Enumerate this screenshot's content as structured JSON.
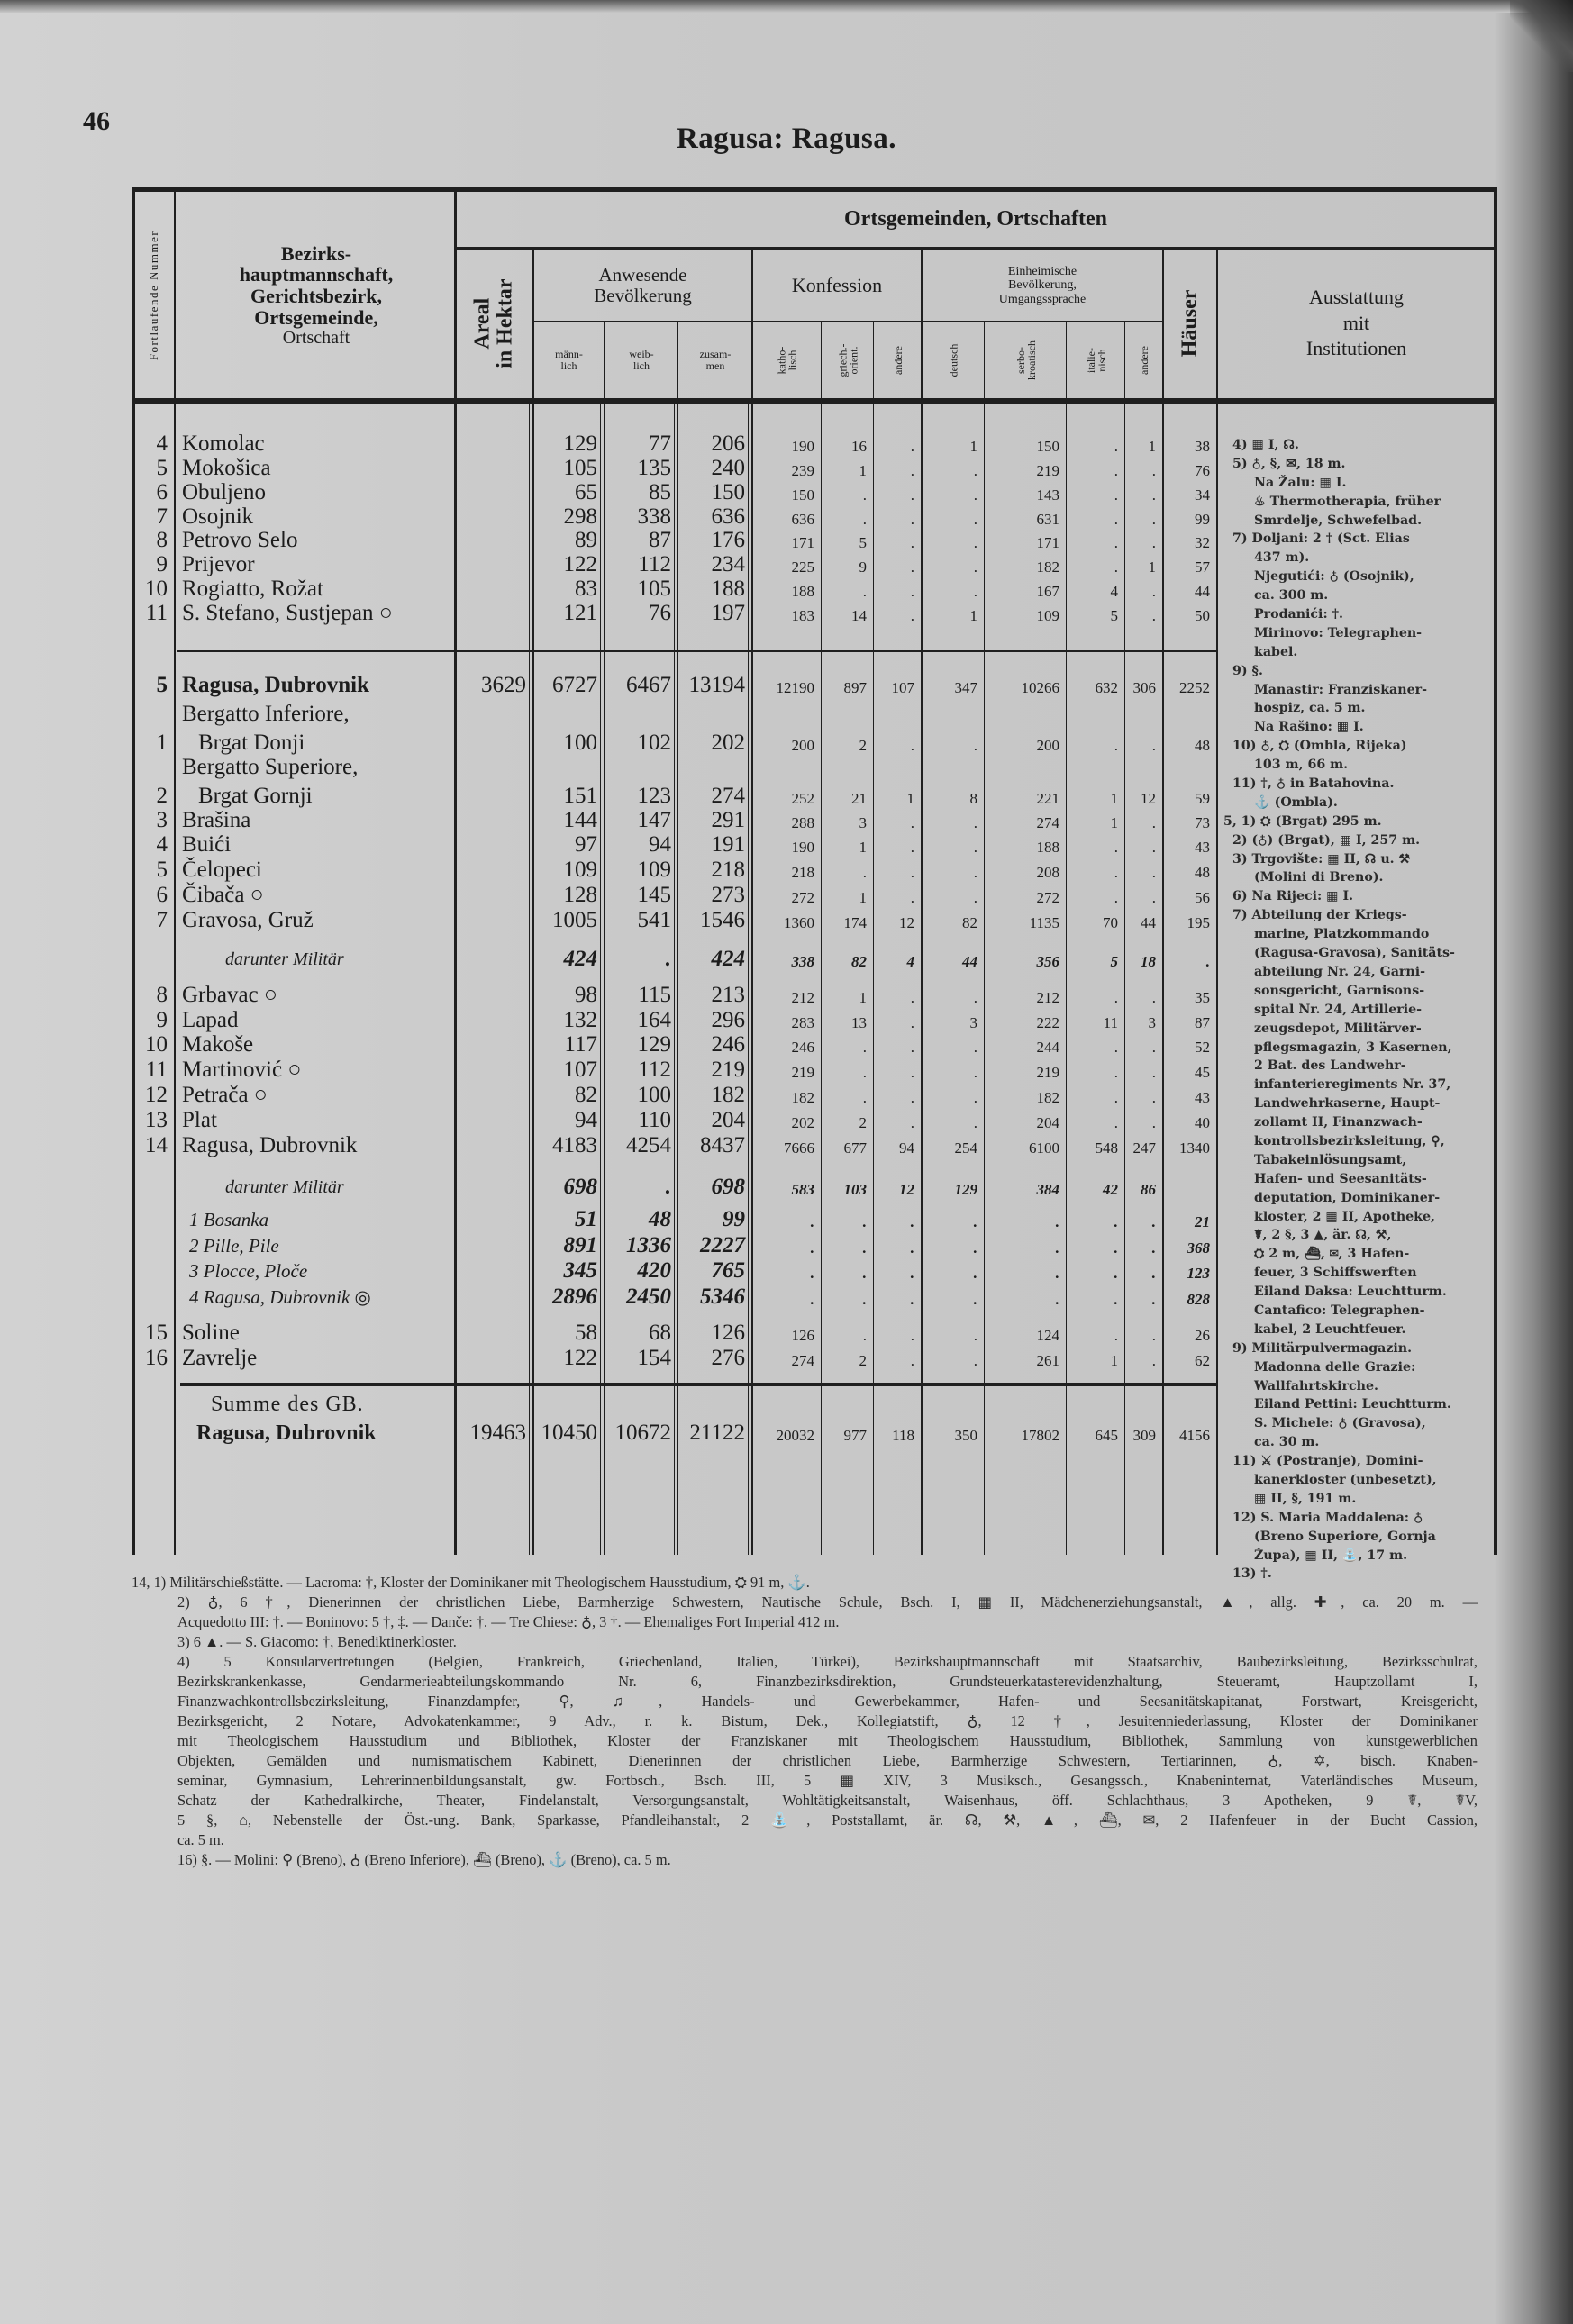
{
  "page": {
    "number": "46",
    "title": "Ragusa: Ragusa."
  },
  "header": {
    "nr": "Fortlaufende Nummer",
    "name": [
      "Bezirks-",
      "hauptmannschaft,",
      "Gerichtsbezirk,",
      "Ortsgemeinde,",
      "Ortschaft"
    ],
    "group_title": "Ortsgemeinden, Ortschaften",
    "areal": [
      "Areal",
      "in Hektar"
    ],
    "bevoelkerung": [
      "Anwesende",
      "Bevölkerung"
    ],
    "bev_cols": [
      [
        "männ-",
        "lich"
      ],
      [
        "weib-",
        "lich"
      ],
      [
        "zusam-",
        "men"
      ]
    ],
    "konfession": "Konfession",
    "konf_cols": [
      [
        "katho-",
        "lisch"
      ],
      [
        "griech.-",
        "orient."
      ],
      [
        "andere"
      ]
    ],
    "sprache": [
      "Einheimische",
      "Bevölkerung,",
      "Umgangssprache"
    ],
    "sprache_cols": [
      [
        "deutsch"
      ],
      [
        "serbo-",
        "kroatisch"
      ],
      [
        "italie-",
        "nisch"
      ],
      [
        "andere"
      ]
    ],
    "haeuser": "Häuser",
    "ausstattung": [
      "Ausstattung",
      "mit",
      "Institutionen"
    ]
  },
  "rows": [
    {
      "nr": "4",
      "name": "Komolac",
      "values": [
        "",
        "129",
        "77",
        "206",
        "190",
        "16",
        ".",
        "1",
        "150",
        ".",
        "1",
        "38"
      ]
    },
    {
      "nr": "5",
      "name": "Mokošica",
      "values": [
        "",
        "105",
        "135",
        "240",
        "239",
        "1",
        ".",
        ".",
        "219",
        ".",
        ".",
        "76"
      ]
    },
    {
      "nr": "6",
      "name": "Obuljeno",
      "values": [
        "",
        "65",
        "85",
        "150",
        "150",
        ".",
        ".",
        ".",
        "143",
        ".",
        ".",
        "34"
      ]
    },
    {
      "nr": "7",
      "name": "Osojnik",
      "values": [
        "",
        "298",
        "338",
        "636",
        "636",
        ".",
        ".",
        ".",
        "631",
        ".",
        ".",
        "99"
      ]
    },
    {
      "nr": "8",
      "name": "Petrovo Selo",
      "values": [
        "",
        "89",
        "87",
        "176",
        "171",
        "5",
        ".",
        ".",
        "171",
        ".",
        ".",
        "32"
      ]
    },
    {
      "nr": "9",
      "name": "Prijevor",
      "values": [
        "",
        "122",
        "112",
        "234",
        "225",
        "9",
        ".",
        ".",
        "182",
        ".",
        "1",
        "57"
      ]
    },
    {
      "nr": "10",
      "name": "Rogiatto, Rožat",
      "values": [
        "",
        "83",
        "105",
        "188",
        "188",
        ".",
        ".",
        ".",
        "167",
        "4",
        ".",
        "44"
      ]
    },
    {
      "nr": "11",
      "name": "S. Stefano, Sustjepan ○",
      "values": [
        "",
        "121",
        "76",
        "197",
        "183",
        "14",
        ".",
        "1",
        "109",
        "5",
        ".",
        "50"
      ]
    },
    {
      "nr": "5",
      "name": "Ragusa, Dubrovnik",
      "kind": "district",
      "values": [
        "3629",
        "6727",
        "6467",
        "13194",
        "12190",
        "897",
        "107",
        "347",
        "10266",
        "632",
        "306",
        "2252"
      ]
    },
    {
      "nr": "1",
      "name_l1": "Bergatto Inferiore,",
      "name": "Brgat Donji",
      "values": [
        "",
        "100",
        "102",
        "202",
        "200",
        "2",
        ".",
        ".",
        "200",
        ".",
        ".",
        "48"
      ]
    },
    {
      "nr": "2",
      "name_l1": "Bergatto Superiore,",
      "name": "Brgat Gornji",
      "values": [
        "",
        "151",
        "123",
        "274",
        "252",
        "21",
        "1",
        "8",
        "221",
        "1",
        "12",
        "59"
      ]
    },
    {
      "nr": "3",
      "name": "Brašina",
      "values": [
        "",
        "144",
        "147",
        "291",
        "288",
        "3",
        ".",
        ".",
        "274",
        "1",
        ".",
        "73"
      ]
    },
    {
      "nr": "4",
      "name": "Buići",
      "values": [
        "",
        "97",
        "94",
        "191",
        "190",
        "1",
        ".",
        ".",
        "188",
        ".",
        ".",
        "43"
      ]
    },
    {
      "nr": "5",
      "name": "Čelopeci",
      "values": [
        "",
        "109",
        "109",
        "218",
        "218",
        ".",
        ".",
        ".",
        "208",
        ".",
        ".",
        "48"
      ]
    },
    {
      "nr": "6",
      "name": "Čibača ○",
      "values": [
        "",
        "128",
        "145",
        "273",
        "272",
        "1",
        ".",
        ".",
        "272",
        ".",
        ".",
        "56"
      ]
    },
    {
      "nr": "7",
      "name": "Gravosa, Gruž",
      "values": [
        "",
        "1005",
        "541",
        "1546",
        "1360",
        "174",
        "12",
        "82",
        "1135",
        "70",
        "44",
        "195"
      ]
    },
    {
      "nr": "",
      "name": "darunter Militär",
      "kind": "military",
      "values": [
        "",
        "424",
        ".",
        "424",
        "338",
        "82",
        "4",
        "44",
        "356",
        "5",
        "18",
        "."
      ]
    },
    {
      "nr": "8",
      "name": "Grbavac ○",
      "values": [
        "",
        "98",
        "115",
        "213",
        "212",
        "1",
        ".",
        ".",
        "212",
        ".",
        ".",
        "35"
      ]
    },
    {
      "nr": "9",
      "name": "Lapad",
      "values": [
        "",
        "132",
        "164",
        "296",
        "283",
        "13",
        ".",
        "3",
        "222",
        "11",
        "3",
        "87"
      ]
    },
    {
      "nr": "10",
      "name": "Makoše",
      "values": [
        "",
        "117",
        "129",
        "246",
        "246",
        ".",
        ".",
        ".",
        "244",
        ".",
        ".",
        "52"
      ]
    },
    {
      "nr": "11",
      "name": "Martinović ○",
      "values": [
        "",
        "107",
        "112",
        "219",
        "219",
        ".",
        ".",
        ".",
        "219",
        ".",
        ".",
        "45"
      ]
    },
    {
      "nr": "12",
      "name": "Petrača ○",
      "values": [
        "",
        "82",
        "100",
        "182",
        "182",
        ".",
        ".",
        ".",
        "182",
        ".",
        ".",
        "43"
      ]
    },
    {
      "nr": "13",
      "name": "Plat",
      "values": [
        "",
        "94",
        "110",
        "204",
        "202",
        "2",
        ".",
        ".",
        "204",
        ".",
        ".",
        "40"
      ]
    },
    {
      "nr": "14",
      "name": "Ragusa, Dubrovnik",
      "values": [
        "",
        "4183",
        "4254",
        "8437",
        "7666",
        "677",
        "94",
        "254",
        "6100",
        "548",
        "247",
        "1340"
      ]
    },
    {
      "nr": "",
      "name": "darunter Militär",
      "kind": "military",
      "values": [
        "",
        "698",
        ".",
        "698",
        "583",
        "103",
        "12",
        "129",
        "384",
        "42",
        "86",
        ""
      ]
    },
    {
      "nr": "",
      "name": "1  Bosanka",
      "kind": "subdivision",
      "values": [
        "",
        "51",
        "48",
        "99",
        ".",
        ".",
        ".",
        ".",
        ".",
        ".",
        ".",
        "21"
      ]
    },
    {
      "nr": "",
      "name": "2  Pille, Pile",
      "kind": "subdivision",
      "values": [
        "",
        "891",
        "1336",
        "2227",
        ".",
        ".",
        ".",
        ".",
        ".",
        ".",
        ".",
        "368"
      ]
    },
    {
      "nr": "",
      "name": "3  Plocce, Ploče",
      "kind": "subdivision",
      "values": [
        "",
        "345",
        "420",
        "765",
        ".",
        ".",
        ".",
        ".",
        ".",
        ".",
        ".",
        "123"
      ]
    },
    {
      "nr": "",
      "name": "4  Ragusa, Dubrovnik ◎",
      "kind": "subdivision",
      "values": [
        "",
        "2896",
        "2450",
        "5346",
        ".",
        ".",
        ".",
        ".",
        ".",
        ".",
        ".",
        "828"
      ]
    },
    {
      "nr": "15",
      "name": "Soline",
      "values": [
        "",
        "58",
        "68",
        "126",
        "126",
        ".",
        ".",
        ".",
        "124",
        ".",
        ".",
        "26"
      ]
    },
    {
      "nr": "16",
      "name": "Zavrelje",
      "values": [
        "",
        "122",
        "154",
        "276",
        "274",
        "2",
        ".",
        ".",
        "261",
        "1",
        ".",
        "62"
      ]
    },
    {
      "nr": "",
      "name_l1": "Summe des GB.",
      "name": "Ragusa, Dubrovnik",
      "kind": "total",
      "values": [
        "19463",
        "10450",
        "10672",
        "21122",
        "20032",
        "977",
        "118",
        "350",
        "17802",
        "645",
        "309",
        "4156"
      ]
    }
  ],
  "ausstattung_lines": [
    "4) ▦ I, ☊.",
    "5) ♁, §, ✉, 18 m.",
    "Na Žalu: ▦ I.",
    "♨ Thermotherapia, früher",
    "Smrdelje, Schwefelbad.",
    "7) Doljani: 2 † (Sct. Elias",
    "437 m).",
    "Njegutići: ♁ (Osojnik),",
    "ca. 300 m.",
    "Prodanići: †.",
    "Mirinovo: Telegraphen-",
    "kabel.",
    "9) §.",
    "Manastir: Franziskaner-",
    "hospiz, ca. 5 m.",
    "Na Rašino: ▦ I.",
    "10) ♁, ⛭ (Ombla, Rijeka)",
    "103 m, 66 m.",
    "11) †, ♁ in Batahovina.",
    "⚓ (Ombla).",
    "5, 1) ⛭ (Brgat) 295 m.",
    "2) (♁) (Brgat), ▦ I, 257 m.",
    "3) Trgovište: ▦ II, ☊ u. ⚒",
    "(Molini di Breno).",
    "6) Na Rijeci: ▦ I.",
    "7) Abteilung der Kriegs-",
    "marine, Platzkommando",
    "(Ragusa-Gravosa), Sanitäts-",
    "abteilung Nr. 24, Garni-",
    "sonsgericht, Garnisons-",
    "spital Nr. 24, Artillerie-",
    "zeugsdepot, Militärver-",
    "pflegsmagazin, 3 Kasernen,",
    "2 Bat. des Landwehr-",
    "infanterieregiments Nr. 37,",
    "Landwehrkaserne, Haupt-",
    "zollamt II, Finanzwach-",
    "kontrollsbezirksleitung, ⚲,",
    "Tabakeinlösungsamt,",
    "Hafen- und Seesanitäts-",
    "deputation, Dominikaner-",
    "kloster, 2 ▦ II, Apotheke,",
    "☤, 2 §, 3 ▲, är. ☊, ⚒,",
    "⛭ 2 m, ⛴, ✉, 3 Hafen-",
    "feuer, 3 Schiffswerften",
    "Eiland Daksa: Leuchtturm.",
    "Cantafico: Telegraphen-",
    "kabel, 2 Leuchtfeuer.",
    "9) Militärpulvermagazin.",
    "Madonna delle Grazie:",
    "Wallfahrtskirche.",
    "Eiland Pettini: Leuchtturm.",
    "S. Michele: ♁ (Gravosa),",
    "ca. 30 m.",
    "11) ⚔ (Postranje), Domini-",
    "kanerkloster (unbesetzt),",
    "▦ II, §, 191 m.",
    "12) S. Maria Maddalena: ♁",
    "(Breno Superiore, Gornja",
    "Župa), ▦ II, ⛲, 17 m.",
    "13) †."
  ],
  "footnotes": [
    "14, 1) Militärschießstätte. — Lacroma: †, Kloster der Dominikaner mit Theologischem Hausstudium, ⛭ 91 m, ⚓.",
    "2) ♁, 6 †, Dienerinnen der christlichen Liebe, Barmherzige Schwestern, Nautische Schule, Bsch. I, ▦ II, Mädchenerziehungsanstalt, ▲, allg. ✚, ca. 20 m. —",
    "Acquedotto III: †. — Boninovo: 5 †, ‡. — Danče: †. — Tre Chiese: ♁, 3 †. — Ehemaliges Fort Imperial 412 m.",
    "3) 6 ▲. — S. Giacomo: †, Benediktinerkloster.",
    "4) 5 Konsularvertretungen (Belgien, Frankreich, Griechenland, Italien, Türkei), Bezirkshauptmannschaft mit Staatsarchiv, Baubezirksleitung, Bezirksschulrat,",
    "Bezirkskrankenkasse, Gendarmerieabteilungskommando Nr. 6, Finanzbezirksdirektion, Grundsteuerkatasterevidenzhaltung, Steueramt, Hauptzollamt I,",
    "Finanzwachkontrollsbezirksleitung, Finanzdampfer, ⚲, ♫, Handels- und Gewerbekammer, Hafen- und Seesanitätskapitanat, Forstwart, Kreisgericht,",
    "Bezirksgericht, 2 Notare, Advokatenkammer, 9 Adv., r. k. Bistum, Dek., Kollegiatstift, ♁, 12 †, Jesuitenniederlassung, Kloster der Dominikaner",
    "mit Theologischem Hausstudium und Bibliothek, Kloster der Franziskaner mit Theologischem Hausstudium, Bibliothek, Sammlung von kunstgewerblichen",
    "Objekten, Gemälden und numismatischem Kabinett, Dienerinnen der christlichen Liebe, Barmherzige Schwestern, Tertiarinnen, ♁, ✡, bisch. Knaben-",
    "seminar, Gymnasium, Lehrerinnenbildungsanstalt, gw. Fortbsch., Bsch. III, 5 ▦ XIV, 3 Musiksch., Gesangssch., Knabeninternat, Vaterländisches Museum,",
    "Schatz der Kathedralkirche, Theater, Findelanstalt, Versorgungsanstalt, Wohltätigkeitsanstalt, Waisenhaus, öff. Schlachthaus, 3 Apotheken, 9 ☤, ☤V,",
    "5 §, ⌂, Nebenstelle der Öst.-ung. Bank, Sparkasse, Pfandleihanstalt, 2 ⛲, Poststallamt, är. ☊, ⚒, ▲, ⛴, ✉, 2 Hafenfeuer in der Bucht Cassion,",
    "ca. 5 m.",
    "16) §. — Molini: ⚲ (Breno), ♁ (Breno Inferiore), ⛴ (Breno), ⚓ (Breno), ca. 5 m."
  ]
}
